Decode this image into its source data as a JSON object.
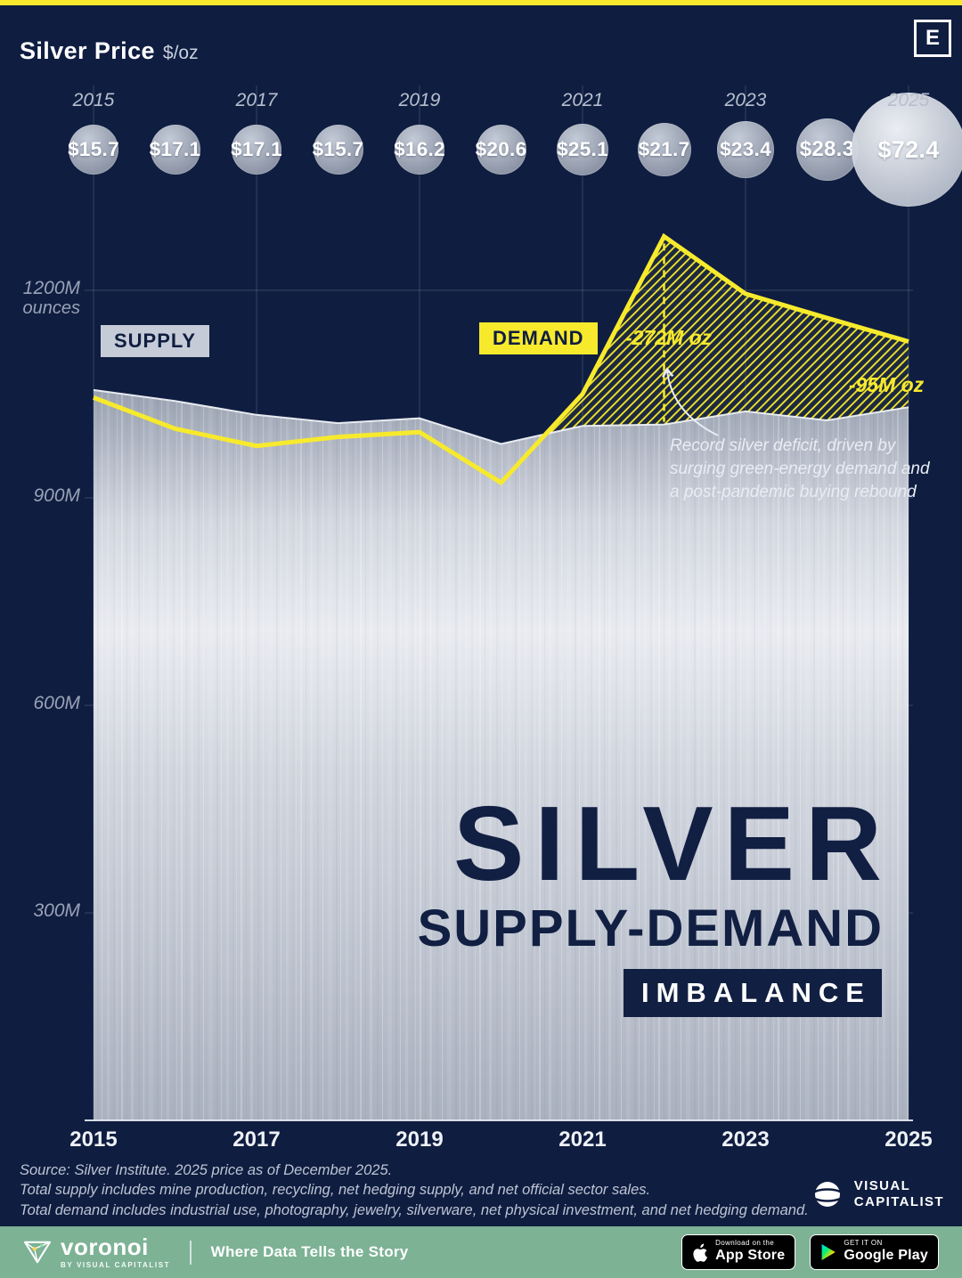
{
  "meta": {
    "logo_letter": "E"
  },
  "header": {
    "title": "Silver Price",
    "unit": "$/oz"
  },
  "chart_data": {
    "type": "area",
    "title": "Silver Supply-Demand Imbalance",
    "unit": "million ounces",
    "x": [
      2015,
      2016,
      2017,
      2018,
      2019,
      2020,
      2021,
      2022,
      2023,
      2024,
      2025
    ],
    "x_tick_labels": [
      "2015",
      "2017",
      "2019",
      "2021",
      "2023",
      "2025"
    ],
    "ylim": [
      0,
      1350
    ],
    "y_ticks": [
      {
        "value": 1200,
        "label": "1200M",
        "sublabel": "ounces"
      },
      {
        "value": 900,
        "label": "900M"
      },
      {
        "value": 600,
        "label": "600M"
      },
      {
        "value": 300,
        "label": "300M"
      }
    ],
    "series": [
      {
        "name": "Supply",
        "style": "silver-metallic-area",
        "values": [
          1056,
          1040,
          1020,
          1008,
          1015,
          978,
          1004,
          1006,
          1025,
          1012,
          1031
        ]
      },
      {
        "name": "Demand",
        "style": "yellow-line",
        "color": "#f7ea2d",
        "values": [
          1045,
          1000,
          975,
          988,
          995,
          922,
          1050,
          1278,
          1195,
          1160,
          1126
        ]
      }
    ],
    "price_series": {
      "name": "Silver Price ($/oz)",
      "values": [
        15.7,
        17.1,
        17.1,
        15.7,
        16.2,
        20.6,
        25.1,
        21.7,
        23.4,
        28.3,
        72.4
      ],
      "labels": [
        "$15.7",
        "$17.1",
        "$17.1",
        "$15.7",
        "$16.2",
        "$20.6",
        "$25.1",
        "$21.7",
        "$23.4",
        "$28.3",
        "$72.4"
      ]
    },
    "legend": {
      "supply": "SUPPLY",
      "demand": "DEMAND"
    },
    "annotations": {
      "deficit_2022": {
        "year": 2022,
        "text": "-272M oz"
      },
      "deficit_2025": {
        "year": 2025,
        "text": "-95M oz"
      },
      "note": "Record silver deficit, driven by\nsurging green-energy demand and\na post-pandemic buying rebound"
    }
  },
  "title_block": {
    "line1": "SILVER",
    "line2": "SUPPLY-DEMAND",
    "line3": "IMBALANCE"
  },
  "source": {
    "line1": "Source: Silver Institute. 2025 price as of December 2025.",
    "line2": "Total supply includes mine production, recycling, net hedging supply, and net official sector sales.",
    "line3": "Total demand includes industrial use, photography, jewelry, silverware, net physical investment, and net hedging demand."
  },
  "vc_logo": {
    "line1": "VISUAL",
    "line2": "CAPITALIST"
  },
  "footer": {
    "brand": "voronoi",
    "brand_sub": "BY VISUAL CAPITALIST",
    "tagline": "Where Data Tells the Story",
    "appstore": {
      "small": "Download on the",
      "big": "App Store"
    },
    "googleplay": {
      "small": "GET IT ON",
      "big": "Google Play"
    }
  },
  "colors": {
    "background": "#0f1d40",
    "accent": "#f7ea2d",
    "footer_green": "#7db295",
    "title_navy": "#111f42",
    "label_silver": "#c6ccd7",
    "text_muted": "#9aa2b6"
  }
}
